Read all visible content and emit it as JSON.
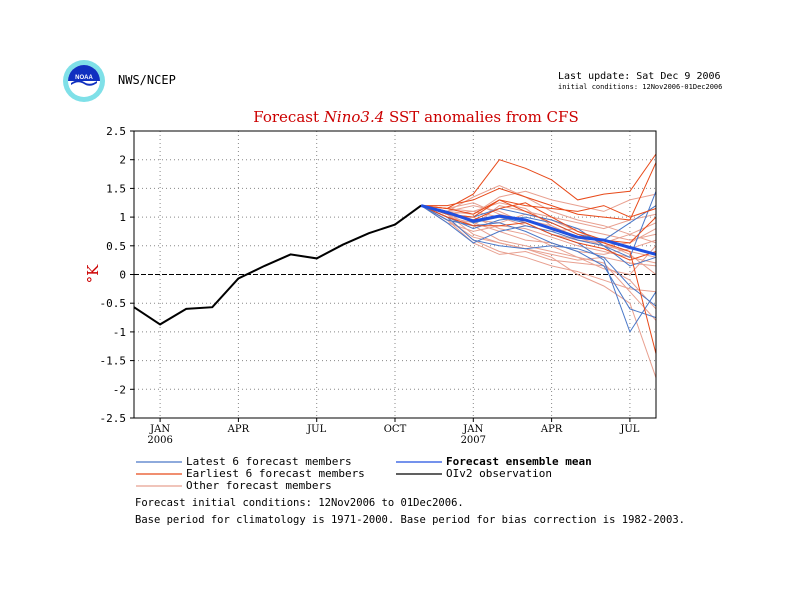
{
  "header": {
    "org": "NWS/NCEP",
    "last_update": "Last update: Sat Dec 9 2006",
    "initial_conditions": "initial conditions: 12Nov2006-01Dec2006",
    "logo_text": "NOAA"
  },
  "footnotes": {
    "line1": "Forecast initial conditions: 12Nov2006 to 01Dec2006.",
    "line2": "Base period for climatology is 1971-2000. Base period for bias correction is 1982-2003."
  },
  "colors": {
    "title": "#cc0000",
    "ylabel": "#cc0000",
    "latest": "#4a78c8",
    "earliest": "#e84a1a",
    "other": "#e8a090",
    "mean": "#2050e0",
    "obs": "#000000",
    "grid": "#888888"
  },
  "chart_data": {
    "type": "line",
    "title_plain": "Forecast ",
    "title_italic": "Nino3.4",
    "title_rest": " SST anomalies from CFS",
    "ylabel": "°K",
    "ylim": [
      -2.5,
      2.5
    ],
    "yticks": [
      2.5,
      2,
      1.5,
      1,
      0.5,
      0,
      -0.5,
      -1,
      -1.5,
      -2,
      -2.5
    ],
    "ytick_labels": [
      "2.5",
      "2",
      "1.5",
      "1",
      "0.5",
      "0",
      "-0.5",
      "-1",
      "-1.5",
      "-2",
      "-2.5"
    ],
    "x_units": "months since Jan 2006",
    "xlim": [
      -1,
      19
    ],
    "xticks": [
      {
        "x": 0,
        "label": "JAN",
        "sub": "2006"
      },
      {
        "x": 3,
        "label": "APR",
        "sub": ""
      },
      {
        "x": 6,
        "label": "JUL",
        "sub": ""
      },
      {
        "x": 9,
        "label": "OCT",
        "sub": ""
      },
      {
        "x": 12,
        "label": "JAN",
        "sub": "2007"
      },
      {
        "x": 15,
        "label": "APR",
        "sub": ""
      },
      {
        "x": 18,
        "label": "JUL",
        "sub": ""
      }
    ],
    "grid": true,
    "zero_line": true,
    "legend": {
      "placement": "bottom",
      "latest": "Latest 6 forecast members",
      "earliest": "Earliest 6 forecast members",
      "other": "Other forecast members",
      "mean": "Forecast ensemble mean",
      "obs": "OIv2 observation"
    },
    "observation": {
      "x": [
        -1,
        0,
        1,
        2,
        3,
        4,
        5,
        6,
        7,
        8,
        9,
        10
      ],
      "y": [
        -0.57,
        -0.87,
        -0.6,
        -0.57,
        -0.07,
        0.15,
        0.35,
        0.28,
        0.52,
        0.72,
        0.87,
        1.2
      ]
    },
    "forecast_x": [
      10,
      11,
      12,
      13,
      14,
      15,
      16,
      17,
      18,
      19
    ],
    "ensemble_mean": [
      1.2,
      1.08,
      0.93,
      1.02,
      0.95,
      0.8,
      0.65,
      0.6,
      0.47,
      0.35
    ],
    "latest_members": [
      [
        1.2,
        1.0,
        0.6,
        0.5,
        0.45,
        0.5,
        0.45,
        0.3,
        -0.2,
        -0.55
      ],
      [
        1.2,
        0.95,
        0.85,
        0.9,
        0.75,
        0.55,
        0.4,
        0.15,
        -0.6,
        -0.75
      ],
      [
        1.2,
        1.05,
        1.0,
        1.15,
        1.05,
        0.95,
        0.8,
        0.5,
        0.3,
        1.45
      ],
      [
        1.2,
        1.1,
        0.9,
        1.0,
        0.9,
        0.7,
        0.55,
        0.25,
        -1.0,
        -0.3
      ],
      [
        1.2,
        0.9,
        0.55,
        0.75,
        0.85,
        0.75,
        0.6,
        0.5,
        0.15,
        0.3
      ],
      [
        1.2,
        1.0,
        0.8,
        0.95,
        1.0,
        0.9,
        0.7,
        0.6,
        0.9,
        1.2
      ]
    ],
    "earliest_members": [
      [
        1.2,
        1.15,
        1.4,
        2.0,
        1.85,
        1.65,
        1.3,
        1.4,
        1.45,
        2.1
      ],
      [
        1.2,
        1.2,
        1.3,
        1.5,
        1.35,
        1.2,
        1.05,
        1.0,
        0.95,
        1.95
      ],
      [
        1.2,
        1.05,
        1.0,
        1.3,
        1.1,
        0.9,
        0.7,
        0.55,
        0.4,
        -1.38
      ],
      [
        1.2,
        1.1,
        0.95,
        1.15,
        1.25,
        1.0,
        0.75,
        0.6,
        0.55,
        1.0
      ],
      [
        1.2,
        1.0,
        0.85,
        0.85,
        0.9,
        0.7,
        0.55,
        0.45,
        0.25,
        0.4
      ],
      [
        1.2,
        1.15,
        1.05,
        1.3,
        1.2,
        1.15,
        1.1,
        1.2,
        1.0,
        1.15
      ]
    ],
    "other_members": [
      [
        1.2,
        1.05,
        0.7,
        0.55,
        0.45,
        0.3,
        0.0,
        -0.2,
        -0.5,
        -1.8
      ],
      [
        1.2,
        0.95,
        0.85,
        0.6,
        0.5,
        0.4,
        0.3,
        0.1,
        0.0,
        0.5
      ],
      [
        1.2,
        1.1,
        1.2,
        1.1,
        0.9,
        0.7,
        0.6,
        0.5,
        0.55,
        0.8
      ],
      [
        1.2,
        1.0,
        0.6,
        0.4,
        0.3,
        0.15,
        0.05,
        -0.1,
        -0.25,
        -0.3
      ],
      [
        1.2,
        1.1,
        1.05,
        1.35,
        1.45,
        1.3,
        1.2,
        1.1,
        1.3,
        1.4
      ],
      [
        1.2,
        0.9,
        0.75,
        0.85,
        0.8,
        0.65,
        0.5,
        0.4,
        0.3,
        0.2
      ],
      [
        1.2,
        1.15,
        1.1,
        1.0,
        0.85,
        0.75,
        0.8,
        0.7,
        0.6,
        0.7
      ],
      [
        1.2,
        1.05,
        0.95,
        0.9,
        1.05,
        0.95,
        0.75,
        0.55,
        0.35,
        0.0
      ],
      [
        1.2,
        0.95,
        0.55,
        0.35,
        0.4,
        0.25,
        0.2,
        0.15,
        -0.1,
        -0.6
      ],
      [
        1.2,
        1.1,
        1.35,
        1.55,
        1.35,
        1.1,
        0.95,
        0.85,
        0.7,
        0.55
      ],
      [
        1.2,
        1.0,
        0.9,
        0.75,
        0.6,
        0.55,
        0.4,
        0.35,
        0.45,
        0.6
      ],
      [
        1.2,
        1.05,
        0.85,
        1.2,
        1.1,
        1.0,
        0.9,
        0.8,
        0.95,
        1.05
      ],
      [
        1.2,
        1.0,
        1.0,
        0.8,
        0.7,
        0.5,
        0.3,
        0.2,
        -0.3,
        -0.8
      ],
      [
        1.2,
        1.15,
        1.25,
        1.05,
        0.95,
        0.85,
        0.65,
        0.5,
        0.4,
        0.3
      ],
      [
        1.2,
        0.95,
        0.65,
        0.55,
        0.45,
        0.35,
        0.25,
        0.3,
        0.2,
        0.15
      ],
      [
        1.2,
        1.05,
        1.1,
        1.25,
        1.15,
        0.85,
        0.6,
        0.55,
        0.7,
        0.9
      ]
    ]
  }
}
